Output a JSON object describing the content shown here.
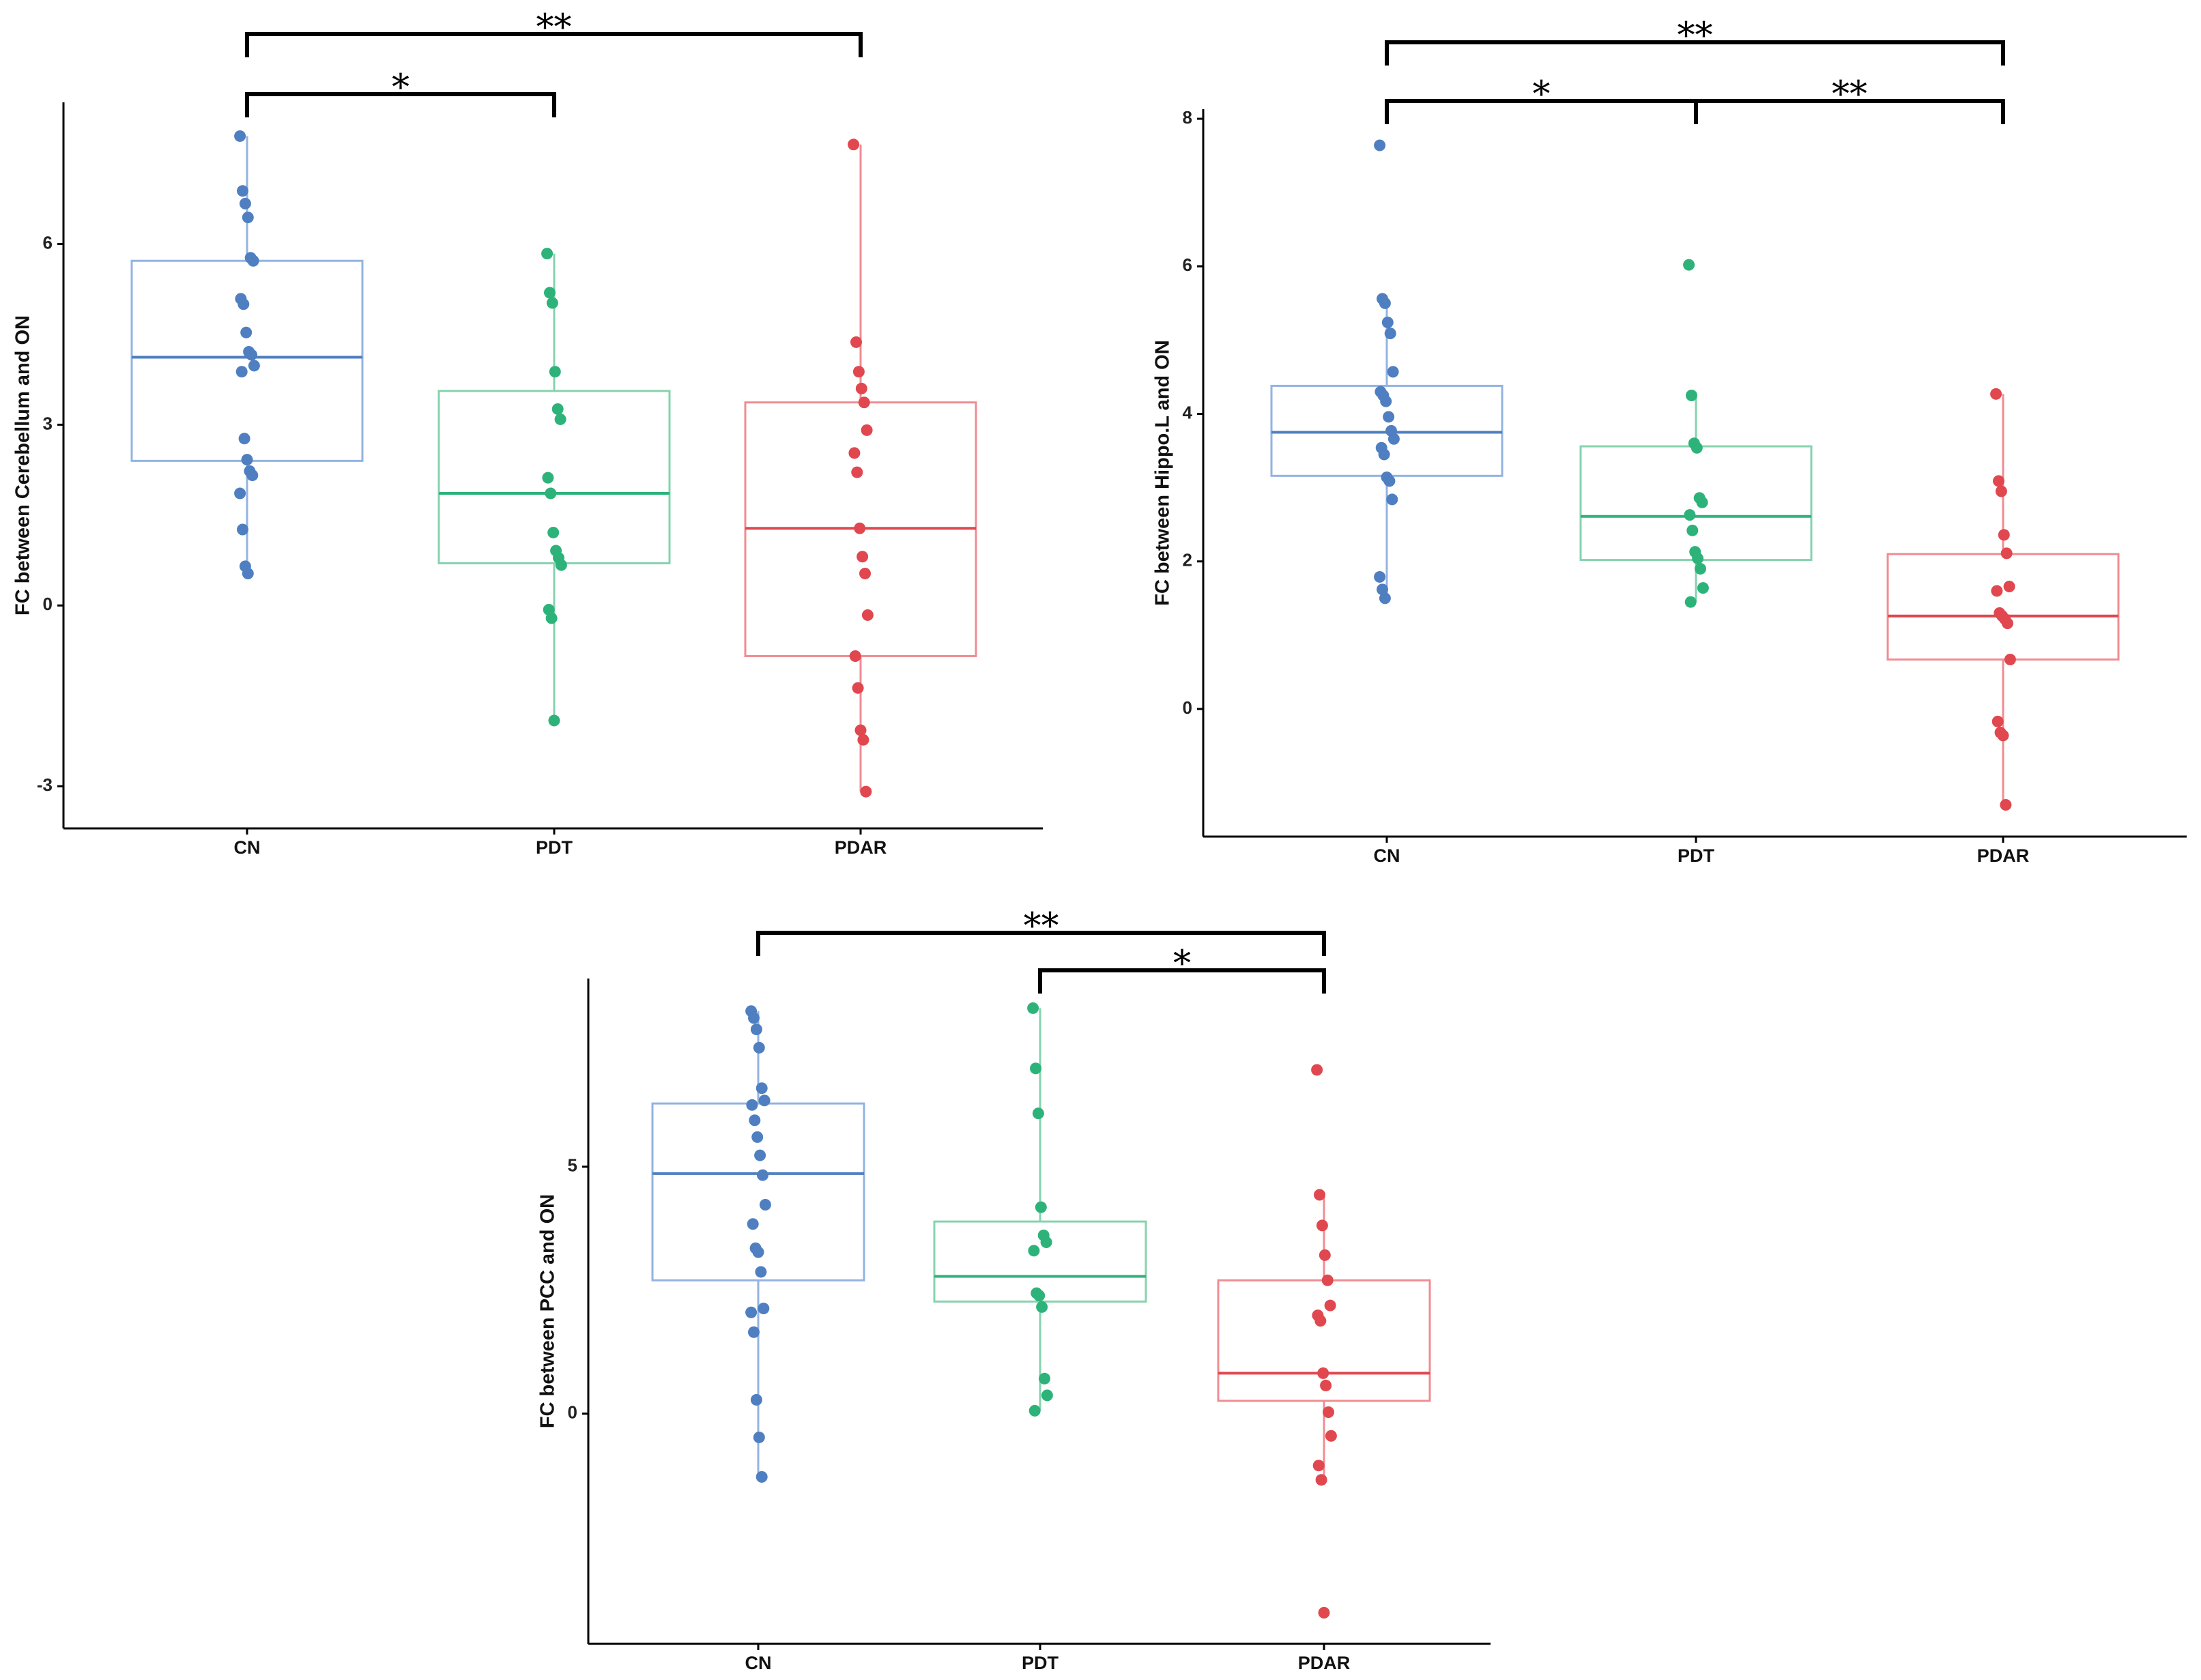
{
  "chart_data": [
    {
      "type": "box",
      "y_label": "FC between Cerebellum and ON",
      "categories": [
        "CN",
        "PDT",
        "PDAR"
      ],
      "ylim": [
        -3.7,
        8.35
      ],
      "yticks": [
        -3,
        0,
        3,
        6
      ],
      "groups": [
        {
          "color": "#4f7fc0",
          "box_color": "#93b3e2",
          "box": {
            "whisker_low": 0.53,
            "q1": 2.4,
            "median": 4.12,
            "q3": 5.72,
            "whisker_high": 7.79
          },
          "points": [
            7.79,
            6.88,
            6.67,
            6.44,
            5.77,
            5.72,
            5.09,
            5.0,
            4.53,
            4.21,
            4.16,
            3.98,
            3.88,
            2.77,
            2.42,
            2.23,
            2.16,
            1.86,
            1.26,
            0.65,
            0.53
          ]
        },
        {
          "color": "#2db37a",
          "box_color": "#86d3ae",
          "box": {
            "whisker_low": -1.91,
            "q1": 0.7,
            "median": 1.86,
            "q3": 3.56,
            "whisker_high": 5.84
          },
          "points": [
            5.84,
            5.19,
            5.02,
            3.88,
            3.26,
            3.09,
            2.12,
            1.86,
            1.21,
            0.91,
            0.79,
            0.67,
            -0.07,
            -0.21,
            -1.91
          ]
        },
        {
          "color": "#e0474f",
          "box_color": "#f08c92",
          "box": {
            "whisker_low": -3.09,
            "q1": -0.84,
            "median": 1.28,
            "q3": 3.37,
            "whisker_high": 7.65
          },
          "points": [
            7.65,
            4.37,
            3.88,
            3.6,
            3.37,
            2.91,
            2.53,
            2.21,
            1.28,
            0.81,
            0.53,
            -0.16,
            -0.84,
            -1.37,
            -2.07,
            -2.23,
            -3.09
          ]
        }
      ],
      "brackets": [
        {
          "from": "CN",
          "to": "PDT",
          "label": "*",
          "level": 0
        },
        {
          "from": "CN",
          "to": "PDAR",
          "label": "**",
          "level": 1
        }
      ]
    },
    {
      "type": "box",
      "y_label": "FC between Hippo.L and ON",
      "categories": [
        "CN",
        "PDT",
        "PDAR"
      ],
      "ylim": [
        -1.73,
        8.13
      ],
      "yticks": [
        0,
        2,
        4,
        6,
        8
      ],
      "groups": [
        {
          "color": "#4f7fc0",
          "box_color": "#93b3e2",
          "box": {
            "whisker_low": 1.5,
            "q1": 3.16,
            "median": 3.75,
            "q3": 4.38,
            "whisker_high": 5.56
          },
          "points": [
            7.64,
            5.56,
            5.5,
            5.24,
            5.09,
            4.57,
            4.3,
            4.25,
            4.17,
            3.96,
            3.77,
            3.66,
            3.54,
            3.45,
            3.14,
            3.09,
            2.84,
            1.79,
            1.62,
            1.5
          ]
        },
        {
          "color": "#2db37a",
          "box_color": "#86d3ae",
          "box": {
            "whisker_low": 1.45,
            "q1": 2.02,
            "median": 2.61,
            "q3": 3.56,
            "whisker_high": 4.25
          },
          "points": [
            6.02,
            4.25,
            3.6,
            3.54,
            2.86,
            2.8,
            2.63,
            2.42,
            2.13,
            2.04,
            1.9,
            1.64,
            1.45
          ]
        },
        {
          "color": "#e0474f",
          "box_color": "#f08c92",
          "box": {
            "whisker_low": -1.3,
            "q1": 0.67,
            "median": 1.26,
            "q3": 2.1,
            "whisker_high": 4.27
          },
          "points": [
            4.27,
            3.09,
            2.95,
            2.36,
            2.11,
            1.66,
            1.6,
            1.3,
            1.26,
            1.22,
            1.16,
            0.67,
            -0.17,
            -0.32,
            -0.36,
            -1.3
          ]
        }
      ],
      "brackets": [
        {
          "from": "CN",
          "to": "PDT",
          "label": "*",
          "level": 0
        },
        {
          "from": "PDT",
          "to": "PDAR",
          "label": "**",
          "level": 0
        },
        {
          "from": "CN",
          "to": "PDAR",
          "label": "**",
          "level": 1
        }
      ]
    },
    {
      "type": "box",
      "y_label": "FC between PCC and ON",
      "categories": [
        "CN",
        "PDT",
        "PDAR"
      ],
      "ylim": [
        -4.66,
        8.81
      ],
      "yticks": [
        0,
        5
      ],
      "groups": [
        {
          "color": "#4f7fc0",
          "box_color": "#93b3e2",
          "box": {
            "whisker_low": -1.28,
            "q1": 2.7,
            "median": 4.86,
            "q3": 6.28,
            "whisker_high": 8.15
          },
          "points": [
            8.15,
            8.01,
            7.78,
            7.41,
            6.59,
            6.34,
            6.25,
            5.94,
            5.6,
            5.23,
            4.83,
            4.23,
            3.84,
            3.35,
            3.27,
            2.87,
            2.13,
            2.05,
            1.65,
            0.28,
            -0.48,
            -1.28
          ]
        },
        {
          "color": "#2db37a",
          "box_color": "#86d3ae",
          "box": {
            "whisker_low": 0.06,
            "q1": 2.27,
            "median": 2.78,
            "q3": 3.89,
            "whisker_high": 8.21
          },
          "points": [
            8.21,
            6.99,
            6.08,
            4.18,
            3.61,
            3.47,
            3.3,
            2.44,
            2.39,
            2.16,
            0.71,
            0.37,
            0.06
          ]
        },
        {
          "color": "#e0474f",
          "box_color": "#f08c92",
          "box": {
            "whisker_low": -1.34,
            "q1": 0.26,
            "median": 0.82,
            "q3": 2.7,
            "whisker_high": 4.43
          },
          "points": [
            6.96,
            4.43,
            3.81,
            3.21,
            2.7,
            2.19,
            1.99,
            1.88,
            0.82,
            0.57,
            0.03,
            -0.45,
            -1.05,
            -1.34,
            -4.03
          ]
        }
      ],
      "brackets": [
        {
          "from": "PDT",
          "to": "PDAR",
          "label": "*",
          "level": 0
        },
        {
          "from": "CN",
          "to": "PDAR",
          "label": "**",
          "level": 1
        }
      ]
    }
  ]
}
